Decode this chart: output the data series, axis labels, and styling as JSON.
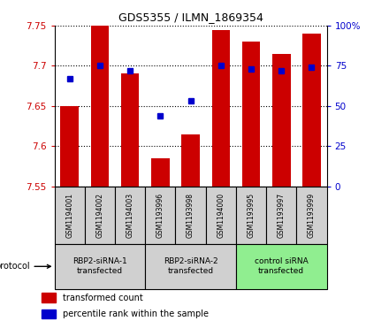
{
  "title": "GDS5355 / ILMN_1869354",
  "samples": [
    "GSM1194001",
    "GSM1194002",
    "GSM1194003",
    "GSM1193996",
    "GSM1193998",
    "GSM1194000",
    "GSM1193995",
    "GSM1193997",
    "GSM1193999"
  ],
  "red_values": [
    7.65,
    7.75,
    7.69,
    7.585,
    7.615,
    7.745,
    7.73,
    7.715,
    7.74
  ],
  "blue_values": [
    67,
    75,
    72,
    44,
    53,
    75,
    73,
    72,
    74
  ],
  "ylim_left": [
    7.55,
    7.75
  ],
  "ylim_right": [
    0,
    100
  ],
  "yticks_left": [
    7.55,
    7.6,
    7.65,
    7.7,
    7.75
  ],
  "yticks_right": [
    0,
    25,
    50,
    75,
    100
  ],
  "ytick_labels_right": [
    "0",
    "25",
    "50",
    "75",
    "100%"
  ],
  "group_display_colors": [
    "#d0d0d0",
    "#d0d0d0",
    "#90ee90"
  ],
  "groups": [
    {
      "label": "RBP2-siRNA-1\ntransfected",
      "indices": [
        0,
        1,
        2
      ]
    },
    {
      "label": "RBP2-siRNA-2\ntransfected",
      "indices": [
        3,
        4,
        5
      ]
    },
    {
      "label": "control siRNA\ntransfected",
      "indices": [
        6,
        7,
        8
      ]
    }
  ],
  "bar_color": "#cc0000",
  "dot_color": "#0000cc",
  "bar_bottom": 7.55,
  "bar_width": 0.6,
  "protocol_label": "protocol",
  "legend_items": [
    {
      "color": "#cc0000",
      "label": "transformed count"
    },
    {
      "color": "#0000cc",
      "label": "percentile rank within the sample"
    }
  ],
  "main_axes": [
    0.14,
    0.42,
    0.7,
    0.5
  ],
  "sample_axes": [
    0.14,
    0.24,
    0.7,
    0.18
  ],
  "group_axes": [
    0.14,
    0.1,
    0.7,
    0.14
  ],
  "legend_axes": [
    0.08,
    0.0,
    0.9,
    0.1
  ]
}
